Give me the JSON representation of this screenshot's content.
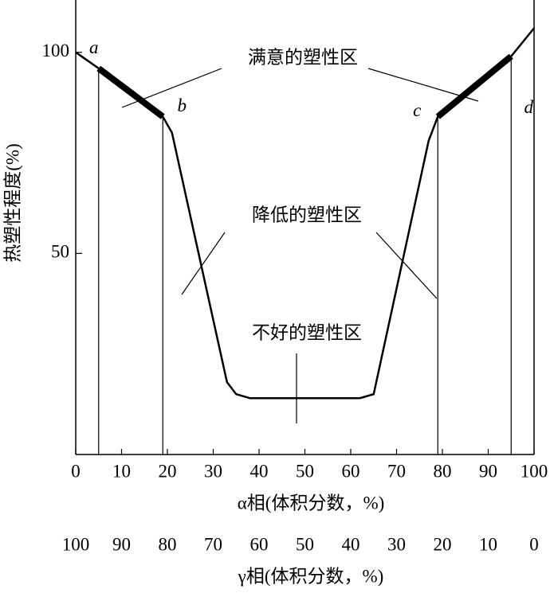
{
  "chart_data": {
    "type": "line",
    "ylabel": "热塑性程度(%)",
    "xlabel": "α相(体积分数，%)",
    "x2label": "γ相(体积分数，%)",
    "x": [
      0,
      5,
      19,
      21,
      33,
      35,
      38,
      62,
      65,
      77,
      79,
      95,
      100
    ],
    "series": [
      {
        "color": "#000000",
        "values": [
          100,
          96,
          84,
          80,
          18,
          15,
          14,
          14,
          15,
          78,
          84,
          99,
          106
        ]
      }
    ],
    "xlim": [
      0,
      100
    ],
    "xticks": [
      0,
      10,
      20,
      30,
      40,
      50,
      60,
      70,
      80,
      90,
      100
    ],
    "x2lim": [
      100,
      0
    ],
    "x2ticks": [
      100,
      90,
      80,
      70,
      60,
      50,
      40,
      30,
      20,
      10,
      0
    ],
    "ylim": [
      0,
      113
    ],
    "yticks": [
      50,
      100
    ],
    "point_labels": [
      {
        "label": "a",
        "x": 5,
        "y": 96
      },
      {
        "label": "b",
        "x": 19,
        "y": 84
      },
      {
        "label": "c",
        "x": 79,
        "y": 84
      },
      {
        "label": "d",
        "x": 95,
        "y": 99
      }
    ],
    "annotations": [
      "满意的塑性区",
      "降低的塑性区",
      "不好的塑性区"
    ]
  }
}
